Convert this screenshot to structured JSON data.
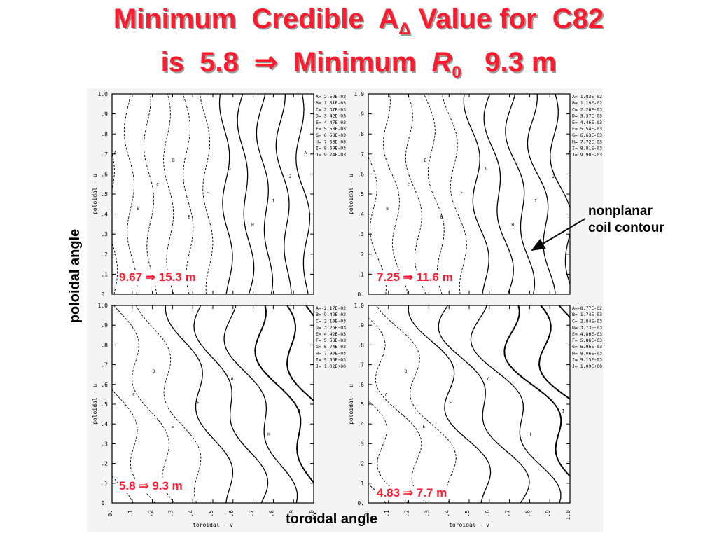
{
  "title": {
    "line1_pre": "Minimum  Credible  A",
    "line1_sub": "Δ",
    "line1_post": " Value for  C82",
    "line2_pre": "is  5.8  ⇒  Minimum  ",
    "line2_var": "R",
    "line2_sub": "0",
    "line2_post": "   9.3 m"
  },
  "axis_labels": {
    "y": "poloidal angle",
    "x": "toroidal angle"
  },
  "annotation": "nonplanar\ncoil contour",
  "panels": [
    {
      "caption": "9.67 ⇒ 15.3 m",
      "ylabel": "poloidal - u",
      "xlabel": "",
      "yticks": [
        "1.0",
        ".9",
        ".8",
        ".7",
        ".6",
        ".5",
        ".4",
        ".3",
        ".2",
        ".1",
        "0."
      ],
      "xticks": [],
      "legend": [
        "A= 2.59E-02",
        "B= 1.51E-03",
        "C= 2.37E-03",
        "D= 3.42E-03",
        "E= 4.47E-03",
        "F= 5.53E-03",
        "G= 6.58E-03",
        "H= 7.63E-03",
        "I= 8.69E-03",
        "J= 9.74E-03"
      ]
    },
    {
      "caption": "7.25 ⇒ 11.6 m",
      "ylabel": "poloidal - u",
      "xlabel": "",
      "yticks": [
        "1.0",
        ".9",
        ".8",
        ".7",
        ".6",
        ".5",
        ".4",
        ".3",
        ".2",
        ".1",
        "0."
      ],
      "xticks": [],
      "legend": [
        "A= 1.83E-02",
        "B= 1.19E-02",
        "C= 2.26E-03",
        "D= 3.37E-03",
        "E= 4.46E-03",
        "F= 5.54E-03",
        "G= 6.63E-03",
        "H= 7.72E-03",
        "I= 8.81E-03",
        "J= 9.90E-03"
      ]
    },
    {
      "caption": "5.8 ⇒ 9.3 m",
      "ylabel": "poloidal - u",
      "xlabel": "toroidal - v",
      "yticks": [
        "1.0",
        ".9",
        ".8",
        ".7",
        ".6",
        ".5",
        ".4",
        ".3",
        ".2",
        ".1",
        "0."
      ],
      "xticks": [
        "0.",
        ".1",
        ".2",
        ".3",
        ".4",
        ".5",
        ".6",
        ".7",
        ".8",
        ".9",
        "1.0"
      ],
      "legend": [
        "A=-2.17E-02",
        "B= 9.42E-02",
        "C= 2.10E-03",
        "D= 3.26E-03",
        "E= 4.42E-03",
        "F= 5.58E-03",
        "G= 6.74E-03",
        "H= 7.90E-03",
        "I= 9.06E-03",
        "J= 1.02E+00"
      ]
    },
    {
      "caption": "4.83 ⇒ 7.7 m",
      "ylabel": "poloidal - u",
      "xlabel": "toroidal - v",
      "yticks": [
        "1.0",
        ".9",
        ".8",
        ".7",
        ".6",
        ".5",
        ".4",
        ".3",
        ".2",
        ".1",
        "0."
      ],
      "xticks": [
        "0.",
        ".1",
        ".2",
        ".3",
        ".4",
        ".5",
        ".6",
        ".7",
        ".8",
        ".9",
        "1.0"
      ],
      "legend": [
        "A=-8.77E-02",
        "B= 1.74E-03",
        "C= 2.84E-03",
        "D= 3.73E-03",
        "E= 4.86E-03",
        "F= 5.86E-03",
        "G= 6.96E-03",
        "H= 8.06E-03",
        "I= 9.15E-03",
        "J= 1.09E+00"
      ]
    }
  ]
}
